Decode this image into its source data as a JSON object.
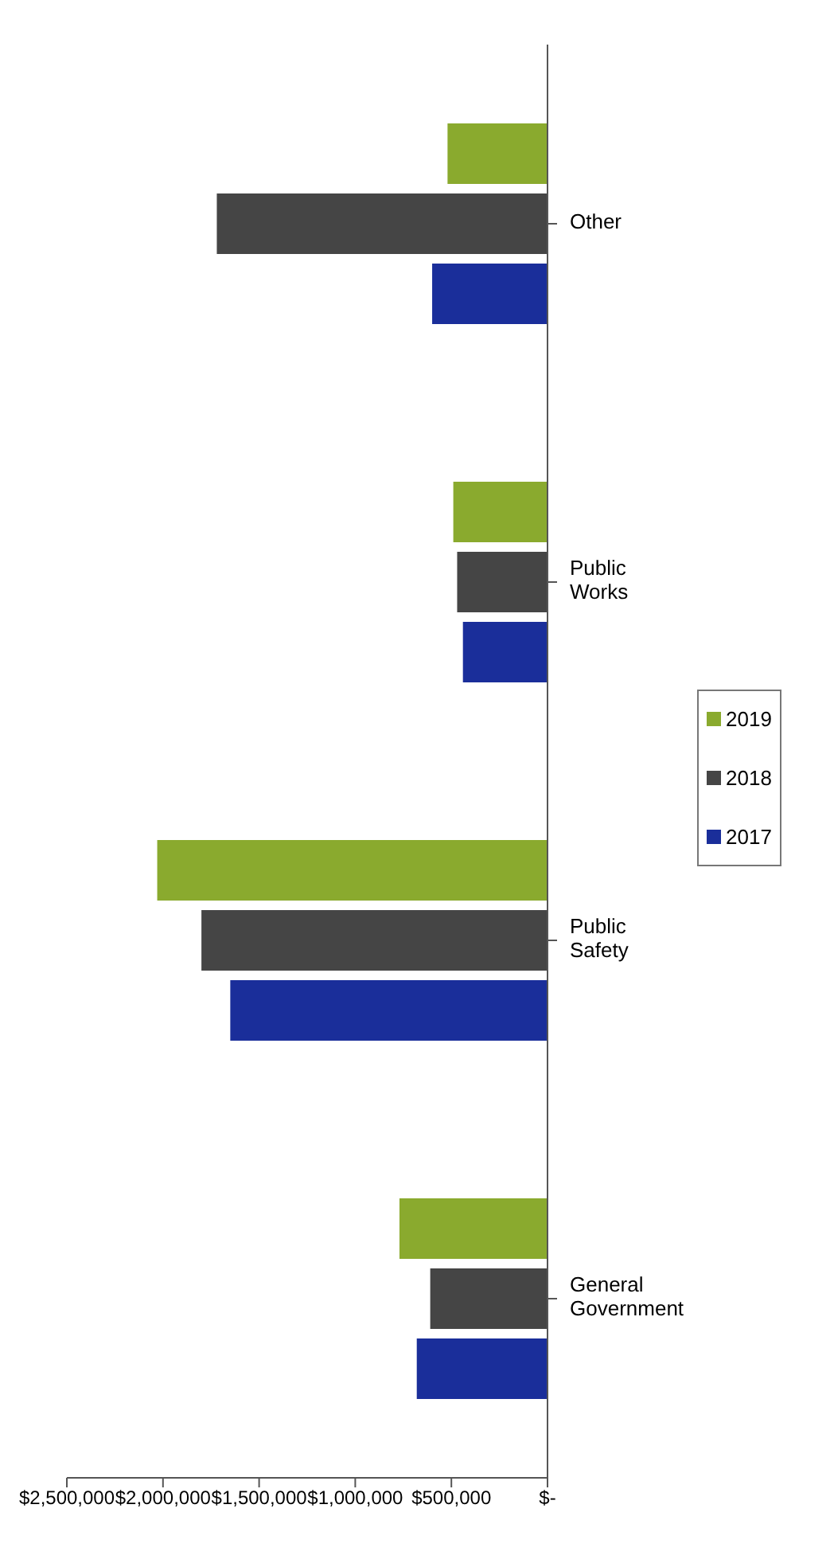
{
  "chart_data": {
    "type": "bar",
    "orientation": "horizontal",
    "categories": [
      "Other",
      "Public Works",
      "Public Safety",
      "General Government"
    ],
    "series": [
      {
        "name": "2019",
        "color": "#8aaa2e",
        "values": [
          520000,
          490000,
          2030000,
          770000
        ]
      },
      {
        "name": "2018",
        "color": "#454545",
        "values": [
          1720000,
          470000,
          1800000,
          610000
        ]
      },
      {
        "name": "2017",
        "color": "#1a2e9a",
        "values": [
          600000,
          440000,
          1650000,
          680000
        ]
      }
    ],
    "xlim": [
      2500000,
      0
    ],
    "xticks": [
      {
        "value": 2500000,
        "label": "$2,500,000"
      },
      {
        "value": 2000000,
        "label": "$2,000,000"
      },
      {
        "value": 1500000,
        "label": "$1,500,000"
      },
      {
        "value": 1000000,
        "label": "$1,000,000"
      },
      {
        "value": 500000,
        "label": "$500,000"
      },
      {
        "value": 0,
        "label": "$-"
      }
    ],
    "grid": false,
    "legend": "right"
  }
}
